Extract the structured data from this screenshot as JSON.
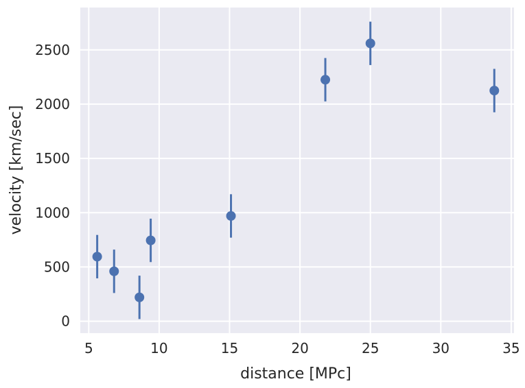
{
  "chart_data": {
    "type": "scatter",
    "title": "",
    "xlabel": "distance [MPc]",
    "ylabel": "velocity [km/sec]",
    "xlim": [
      4.4,
      35.2
    ],
    "ylim": [
      -110,
      2890
    ],
    "xticks": [
      5,
      10,
      15,
      20,
      25,
      30,
      35
    ],
    "yticks": [
      0,
      500,
      1000,
      1500,
      2000,
      2500
    ],
    "grid": true,
    "style": {
      "background": "#eaeaf2",
      "grid_color": "#ffffff",
      "marker_color": "#4c72b0"
    },
    "points": [
      {
        "x": 5.6,
        "y": 595,
        "yerr": 200
      },
      {
        "x": 6.8,
        "y": 460,
        "yerr": 200
      },
      {
        "x": 8.6,
        "y": 220,
        "yerr": 200
      },
      {
        "x": 9.4,
        "y": 745,
        "yerr": 200
      },
      {
        "x": 15.1,
        "y": 970,
        "yerr": 200
      },
      {
        "x": 21.8,
        "y": 2225,
        "yerr": 200
      },
      {
        "x": 25.0,
        "y": 2560,
        "yerr": 200
      },
      {
        "x": 33.8,
        "y": 2125,
        "yerr": 200
      }
    ]
  }
}
